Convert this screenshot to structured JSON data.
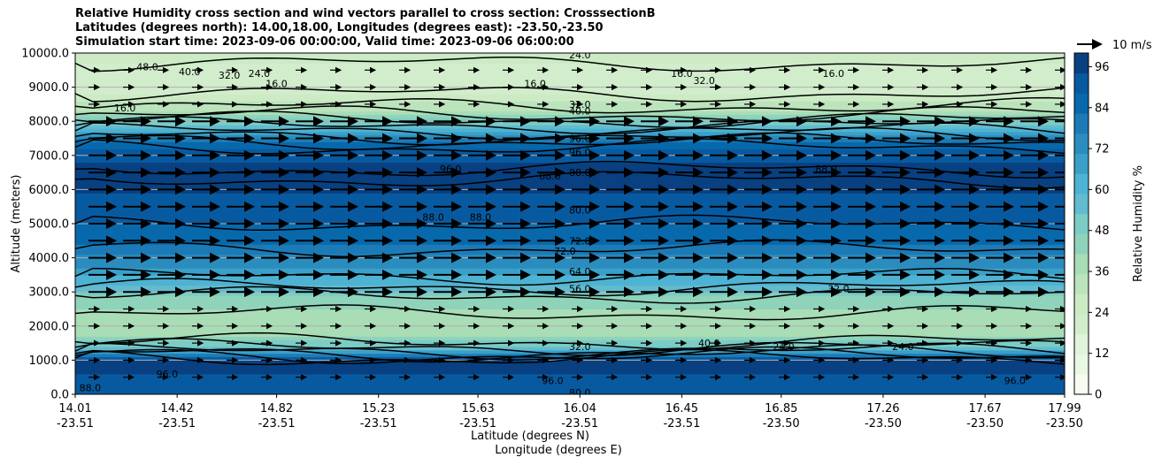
{
  "chart_data": {
    "type": "contourf",
    "title_lines": [
      "Relative Humidity cross section and wind vectors parallel to cross section: CrosssectionB",
      "Latitudes (degrees north): 14.00,18.00, Longitudes (degrees east): -23.50,-23.50",
      "Simulation start time: 2023-09-06 00:00:00, Valid time: 2023-09-06 06:00:00"
    ],
    "ylabel": "Altitude (meters)",
    "xlabel_lines": [
      "Latitude (degrees N)",
      "Longitude (degrees E)"
    ],
    "ylim": [
      0,
      10000
    ],
    "y_ticks": [
      "0.0",
      "1000.0",
      "2000.0",
      "3000.0",
      "4000.0",
      "5000.0",
      "6000.0",
      "7000.0",
      "8000.0",
      "9000.0",
      "10000.0"
    ],
    "x_ticks": [
      {
        "lat": "14.01",
        "lon": "-23.51"
      },
      {
        "lat": "14.42",
        "lon": "-23.51"
      },
      {
        "lat": "14.82",
        "lon": "-23.51"
      },
      {
        "lat": "15.23",
        "lon": "-23.51"
      },
      {
        "lat": "15.63",
        "lon": "-23.51"
      },
      {
        "lat": "16.04",
        "lon": "-23.51"
      },
      {
        "lat": "16.45",
        "lon": "-23.51"
      },
      {
        "lat": "16.85",
        "lon": "-23.50"
      },
      {
        "lat": "17.26",
        "lon": "-23.50"
      },
      {
        "lat": "17.67",
        "lon": "-23.50"
      },
      {
        "lat": "17.99",
        "lon": "-23.50"
      }
    ],
    "grid": "horizontal",
    "colorbar": {
      "label": "Relative Humidity %",
      "range": [
        0,
        100
      ],
      "ticks": [
        "0",
        "12",
        "24",
        "36",
        "48",
        "60",
        "72",
        "84",
        "96"
      ],
      "colors": [
        "#f7fcf0",
        "#eaf7e4",
        "#e0f3db",
        "#d1edcb",
        "#ccebc5",
        "#bbe4bc",
        "#a8ddb5",
        "#8fd3bb",
        "#7bccc4",
        "#63bbcf",
        "#4eb3d3",
        "#3aa0c9",
        "#2b8cbe",
        "#1c7bb6",
        "#0868ac",
        "#085aa0",
        "#084081"
      ]
    },
    "quiver_key": "10 m/s",
    "rh_profile": [
      {
        "alt": 0,
        "rh": 92
      },
      {
        "alt": 500,
        "rh": 94
      },
      {
        "alt": 1000,
        "rh": 95
      },
      {
        "alt": 1300,
        "rh": 60
      },
      {
        "alt": 1700,
        "rh": 40
      },
      {
        "alt": 2200,
        "rh": 38
      },
      {
        "alt": 2800,
        "rh": 45
      },
      {
        "alt": 3200,
        "rh": 58
      },
      {
        "alt": 3800,
        "rh": 72
      },
      {
        "alt": 4500,
        "rh": 84
      },
      {
        "alt": 5500,
        "rh": 92
      },
      {
        "alt": 6500,
        "rh": 97
      },
      {
        "alt": 7200,
        "rh": 90
      },
      {
        "alt": 7800,
        "rh": 60
      },
      {
        "alt": 8300,
        "rh": 35
      },
      {
        "alt": 9000,
        "rh": 20
      },
      {
        "alt": 9600,
        "rh": 22
      },
      {
        "alt": 10000,
        "rh": 30
      }
    ],
    "contour_labels": [
      {
        "text": "24.0",
        "x": "16.04",
        "alt": 9950
      },
      {
        "text": "16.0",
        "x": "14.82",
        "alt": 9100
      },
      {
        "text": "32.0",
        "x": "14.63",
        "alt": 9350
      },
      {
        "text": "40.0",
        "x": "14.47",
        "alt": 9450
      },
      {
        "text": "48.0",
        "x": "14.30",
        "alt": 9600
      },
      {
        "text": "24.0",
        "x": "14.75",
        "alt": 9400
      },
      {
        "text": "16.0",
        "x": "14.21",
        "alt": 8400
      },
      {
        "text": "16.0",
        "x": "15.86",
        "alt": 9100
      },
      {
        "text": "16.0",
        "x": "16.45",
        "alt": 9400
      },
      {
        "text": "32.0",
        "x": "16.54",
        "alt": 9200
      },
      {
        "text": "16.0",
        "x": "17.06",
        "alt": 9400
      },
      {
        "text": "32.0",
        "x": "16.04",
        "alt": 8500
      },
      {
        "text": "40.0",
        "x": "16.04",
        "alt": 8300
      },
      {
        "text": "96.0",
        "x": "16.04",
        "alt": 7500
      },
      {
        "text": "96.0",
        "x": "16.04",
        "alt": 7100
      },
      {
        "text": "88.0",
        "x": "16.04",
        "alt": 6500
      },
      {
        "text": "88.0",
        "x": "15.92",
        "alt": 6400
      },
      {
        "text": "96.0",
        "x": "15.52",
        "alt": 6600
      },
      {
        "text": "88.0",
        "x": "17.03",
        "alt": 6600
      },
      {
        "text": "80.0",
        "x": "16.04",
        "alt": 5400
      },
      {
        "text": "88.0",
        "x": "15.45",
        "alt": 5200
      },
      {
        "text": "88.0",
        "x": "15.64",
        "alt": 5200
      },
      {
        "text": "72.0",
        "x": "16.04",
        "alt": 4500
      },
      {
        "text": "72.0",
        "x": "15.98",
        "alt": 4200
      },
      {
        "text": "64.0",
        "x": "16.04",
        "alt": 3600
      },
      {
        "text": "56.0",
        "x": "16.04",
        "alt": 3100
      },
      {
        "text": "32.0",
        "x": "17.08",
        "alt": 3100
      },
      {
        "text": "32.0",
        "x": "16.04",
        "alt": 1400
      },
      {
        "text": "40.0",
        "x": "16.56",
        "alt": 1500
      },
      {
        "text": "24.0",
        "x": "16.86",
        "alt": 1400
      },
      {
        "text": "96.0",
        "x": "14.38",
        "alt": 600
      },
      {
        "text": "88.0",
        "x": "14.07",
        "alt": 200
      },
      {
        "text": "96.0",
        "x": "15.93",
        "alt": 400
      },
      {
        "text": "80.0",
        "x": "16.04",
        "alt": 50
      },
      {
        "text": "24.0",
        "x": "17.34",
        "alt": 1400
      },
      {
        "text": "96.0",
        "x": "17.79",
        "alt": 400
      }
    ],
    "wind_vectors": "arrows pointing east (parallel to cross section), stronger between 3000 and 8000 m"
  }
}
